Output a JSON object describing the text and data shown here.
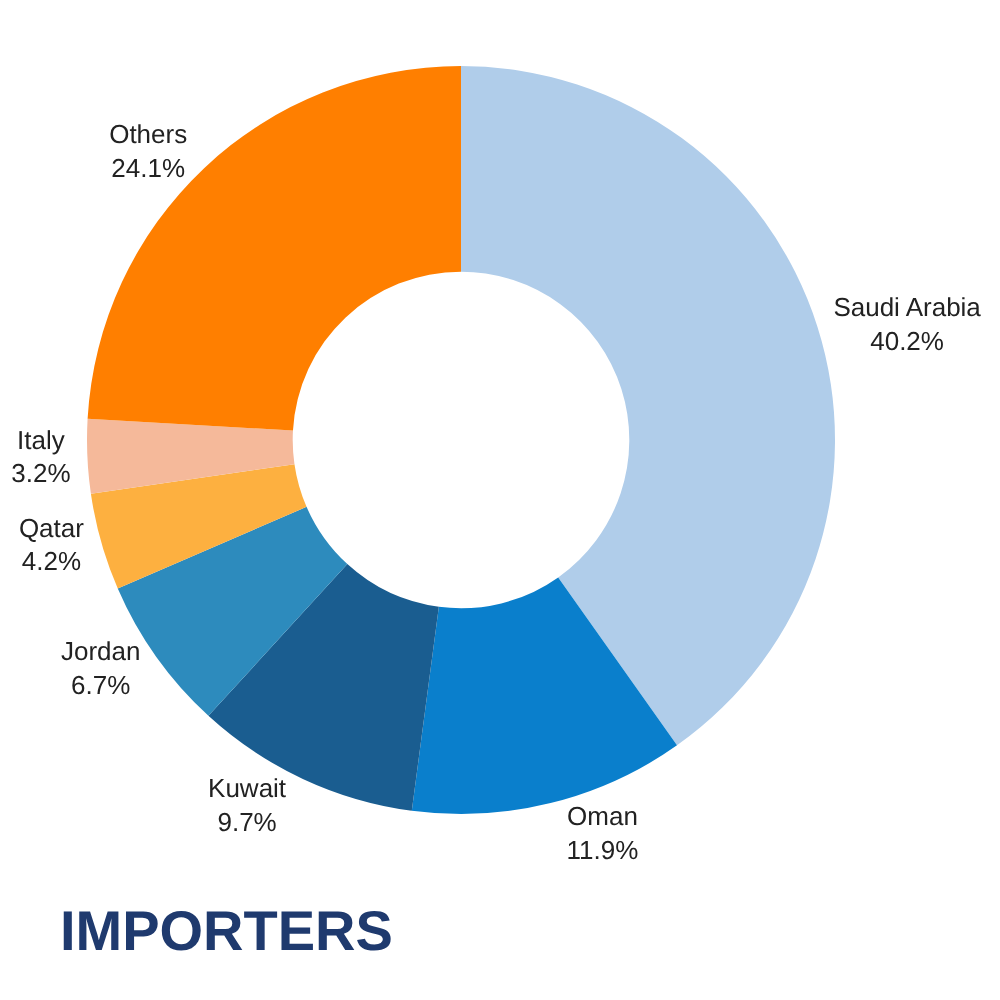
{
  "chart_data": {
    "type": "donut",
    "title": "IMPORTERS",
    "categories": [
      "Saudi Arabia",
      "Oman",
      "Kuwait",
      "Jordan",
      "Qatar",
      "Italy",
      "Others"
    ],
    "values": [
      40.2,
      11.9,
      9.7,
      6.7,
      4.2,
      3.2,
      24.1
    ],
    "value_labels": [
      "40.2%",
      "11.9%",
      "9.7%",
      "6.7%",
      "4.2%",
      "3.2%",
      "24.1%"
    ],
    "colors": [
      "#b0cdea",
      "#0a7fcc",
      "#1a5d90",
      "#2d8bbd",
      "#fdb040",
      "#f5b99a",
      "#ff7f00"
    ],
    "legend": false
  }
}
